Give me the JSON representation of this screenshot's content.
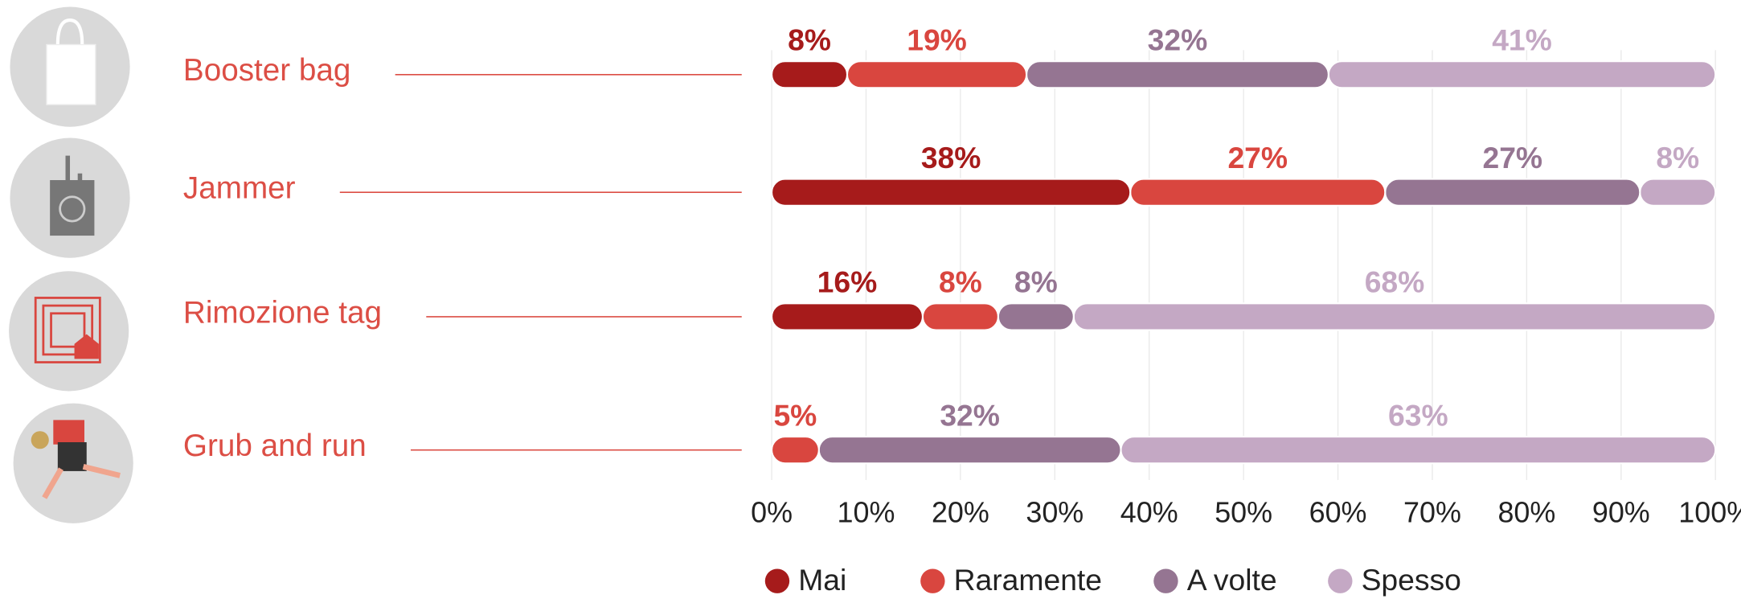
{
  "chart_data": {
    "type": "bar",
    "orientation": "horizontal",
    "stacked": true,
    "categories": [
      "Booster bag",
      "Jammer",
      "Rimozione tag",
      "Grub and run"
    ],
    "series": [
      {
        "name": "Mai",
        "color": "#a61b1b",
        "values": [
          8,
          38,
          16,
          null
        ],
        "value_labels": [
          "8%",
          "38%",
          "16%",
          null
        ]
      },
      {
        "name": "Raramente",
        "color": "#d9463f",
        "values": [
          19,
          27,
          8,
          5
        ],
        "value_labels": [
          "19%",
          "27%",
          "8%",
          "5%"
        ]
      },
      {
        "name": "A volte",
        "color": "#957592",
        "values": [
          32,
          27,
          8,
          32
        ],
        "value_labels": [
          "32%",
          "27%",
          "8%",
          "32%"
        ]
      },
      {
        "name": "Spesso",
        "color": "#c4a8c4",
        "values": [
          41,
          8,
          68,
          63
        ],
        "value_labels": [
          "41%",
          "8%",
          "68%",
          "63%"
        ]
      }
    ],
    "xlim": [
      0,
      100
    ],
    "xticks": [
      {
        "value": 0,
        "label": "0%"
      },
      {
        "value": 10,
        "label": "10%"
      },
      {
        "value": 20,
        "label": "20%"
      },
      {
        "value": 30,
        "label": "30%"
      },
      {
        "value": 40,
        "label": "40%"
      },
      {
        "value": 50,
        "label": "50%"
      },
      {
        "value": 60,
        "label": "60%"
      },
      {
        "value": 70,
        "label": "70%"
      },
      {
        "value": 80,
        "label": "80%"
      },
      {
        "value": 90,
        "label": "90%"
      },
      {
        "value": 100,
        "label": "100%"
      }
    ],
    "grid": true,
    "legend": "bottom"
  }
}
